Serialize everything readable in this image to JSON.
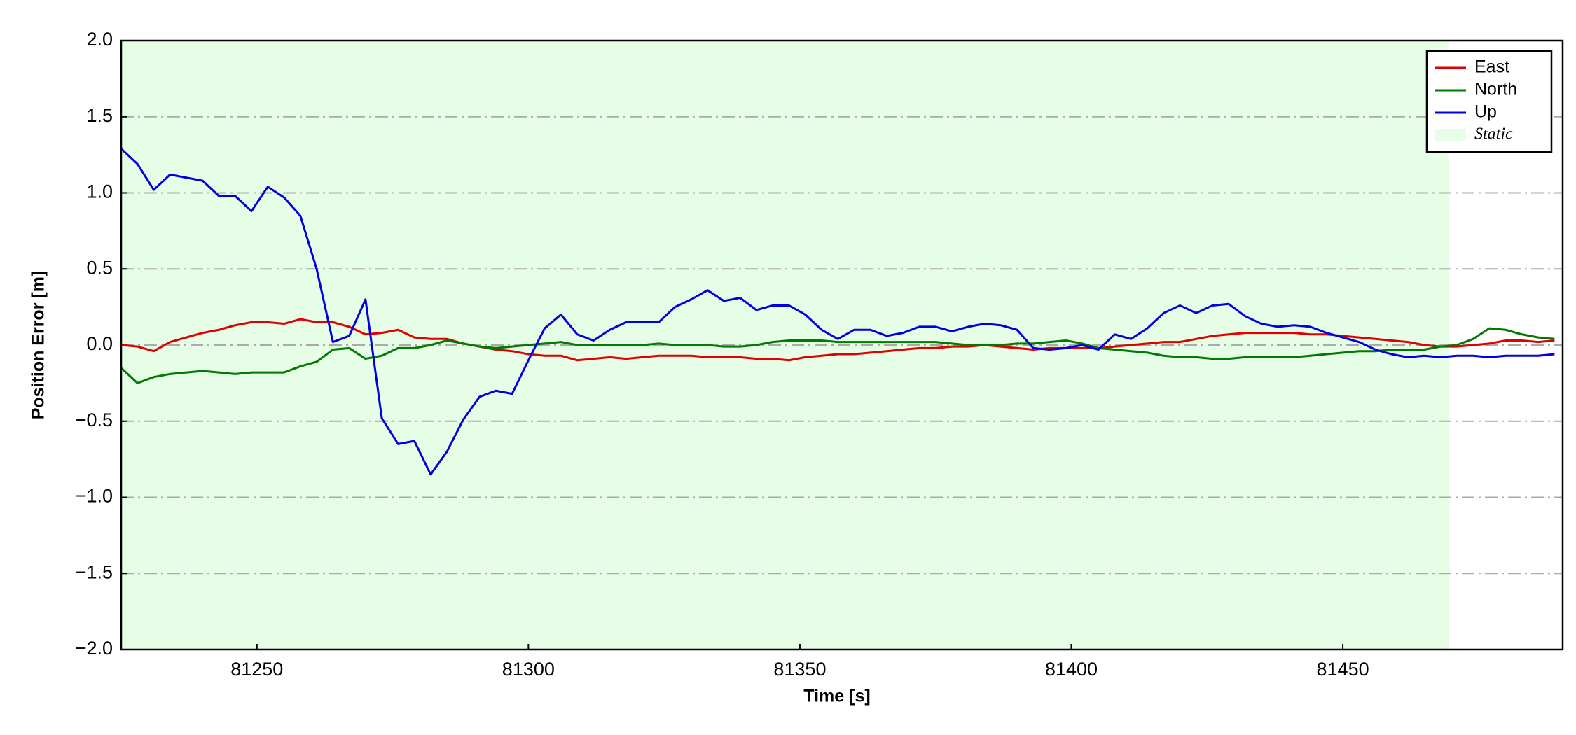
{
  "chart_data": {
    "type": "line",
    "x_label": "Time [s]",
    "y_label": "Position Error [m]",
    "x": [
      81225,
      81228,
      81231,
      81234,
      81237,
      81240,
      81243,
      81246,
      81249,
      81252,
      81255,
      81258,
      81261,
      81264,
      81267,
      81270,
      81273,
      81276,
      81279,
      81282,
      81285,
      81288,
      81291,
      81294,
      81297,
      81300,
      81303,
      81306,
      81309,
      81312,
      81315,
      81318,
      81321,
      81324,
      81327,
      81330,
      81333,
      81336,
      81339,
      81342,
      81345,
      81348,
      81351,
      81354,
      81357,
      81360,
      81363,
      81366,
      81369,
      81372,
      81375,
      81378,
      81381,
      81384,
      81387,
      81390,
      81393,
      81396,
      81399,
      81402,
      81405,
      81408,
      81411,
      81414,
      81417,
      81420,
      81423,
      81426,
      81429,
      81432,
      81435,
      81438,
      81441,
      81444,
      81447,
      81450,
      81453,
      81456,
      81459,
      81462,
      81465,
      81468,
      81471,
      81474,
      81477,
      81480,
      81483,
      81486,
      81489
    ],
    "series": [
      {
        "name": "East",
        "color": "#e00000",
        "values": [
          0.0,
          -0.01,
          -0.04,
          0.02,
          0.05,
          0.08,
          0.1,
          0.13,
          0.15,
          0.15,
          0.14,
          0.17,
          0.15,
          0.15,
          0.12,
          0.07,
          0.08,
          0.1,
          0.05,
          0.04,
          0.04,
          0.01,
          -0.01,
          -0.03,
          -0.04,
          -0.06,
          -0.07,
          -0.07,
          -0.1,
          -0.09,
          -0.08,
          -0.09,
          -0.08,
          -0.07,
          -0.07,
          -0.07,
          -0.08,
          -0.08,
          -0.08,
          -0.09,
          -0.09,
          -0.1,
          -0.08,
          -0.07,
          -0.06,
          -0.06,
          -0.05,
          -0.04,
          -0.03,
          -0.02,
          -0.02,
          -0.01,
          -0.01,
          0.0,
          -0.01,
          -0.02,
          -0.03,
          -0.02,
          -0.02,
          -0.02,
          -0.02,
          -0.01,
          0.0,
          0.01,
          0.02,
          0.02,
          0.04,
          0.06,
          0.07,
          0.08,
          0.08,
          0.08,
          0.08,
          0.07,
          0.07,
          0.06,
          0.05,
          0.04,
          0.03,
          0.02,
          0.0,
          -0.01,
          -0.01,
          0.0,
          0.01,
          0.03,
          0.03,
          0.02,
          0.03
        ]
      },
      {
        "name": "North",
        "color": "#007a00",
        "values": [
          -0.15,
          -0.25,
          -0.21,
          -0.19,
          -0.18,
          -0.17,
          -0.18,
          -0.19,
          -0.18,
          -0.18,
          -0.18,
          -0.14,
          -0.11,
          -0.03,
          -0.02,
          -0.09,
          -0.07,
          -0.02,
          -0.02,
          0.0,
          0.03,
          0.01,
          -0.01,
          -0.02,
          -0.01,
          0.0,
          0.01,
          0.02,
          0.0,
          0.0,
          0.0,
          0.0,
          0.0,
          0.01,
          0.0,
          0.0,
          0.0,
          -0.01,
          -0.01,
          0.0,
          0.02,
          0.03,
          0.03,
          0.03,
          0.02,
          0.02,
          0.02,
          0.02,
          0.02,
          0.02,
          0.02,
          0.01,
          0.0,
          0.0,
          0.0,
          0.01,
          0.01,
          0.02,
          0.03,
          0.01,
          -0.02,
          -0.03,
          -0.04,
          -0.05,
          -0.07,
          -0.08,
          -0.08,
          -0.09,
          -0.09,
          -0.08,
          -0.08,
          -0.08,
          -0.08,
          -0.07,
          -0.06,
          -0.05,
          -0.04,
          -0.04,
          -0.03,
          -0.03,
          -0.03,
          -0.01,
          0.0,
          0.04,
          0.11,
          0.1,
          0.07,
          0.05,
          0.04
        ]
      },
      {
        "name": "Up",
        "color": "#0000e0",
        "values": [
          1.29,
          1.19,
          1.02,
          1.12,
          1.1,
          1.08,
          0.98,
          0.98,
          0.88,
          1.04,
          0.97,
          0.85,
          0.5,
          0.02,
          0.06,
          0.3,
          -0.48,
          -0.65,
          -0.63,
          -0.85,
          -0.7,
          -0.49,
          -0.34,
          -0.3,
          -0.32,
          -0.1,
          0.11,
          0.2,
          0.07,
          0.03,
          0.1,
          0.15,
          0.15,
          0.15,
          0.25,
          0.3,
          0.36,
          0.29,
          0.31,
          0.23,
          0.26,
          0.26,
          0.2,
          0.1,
          0.04,
          0.1,
          0.1,
          0.06,
          0.08,
          0.12,
          0.12,
          0.09,
          0.12,
          0.14,
          0.13,
          0.1,
          -0.02,
          -0.03,
          -0.02,
          0.0,
          -0.03,
          0.07,
          0.04,
          0.11,
          0.21,
          0.26,
          0.21,
          0.26,
          0.27,
          0.19,
          0.14,
          0.12,
          0.13,
          0.12,
          0.08,
          0.05,
          0.02,
          -0.03,
          -0.06,
          -0.08,
          -0.07,
          -0.08,
          -0.07,
          -0.07,
          -0.08,
          -0.07,
          -0.07,
          -0.07,
          -0.06
        ]
      }
    ],
    "shaded_region": {
      "name": "Static",
      "color": "#e6fde6",
      "x": [
        81225,
        81469.5
      ]
    },
    "xlim": [
      81225,
      81490.5
    ],
    "ylim": [
      -2.0,
      2.0
    ],
    "xticks": [
      81250,
      81300,
      81350,
      81400,
      81450
    ],
    "yticks": [
      {
        "value": -2.0,
        "label": "−2.0"
      },
      {
        "value": -1.5,
        "label": "−1.5"
      },
      {
        "value": -1.0,
        "label": "−1.0"
      },
      {
        "value": -0.5,
        "label": "−0.5"
      },
      {
        "value": 0.0,
        "label": "0.0"
      },
      {
        "value": 0.5,
        "label": "0.5"
      },
      {
        "value": 1.0,
        "label": "1.0"
      },
      {
        "value": 1.5,
        "label": "1.5"
      },
      {
        "value": 2.0,
        "label": "2.0"
      }
    ],
    "grid": "y",
    "legend": "upper right"
  }
}
